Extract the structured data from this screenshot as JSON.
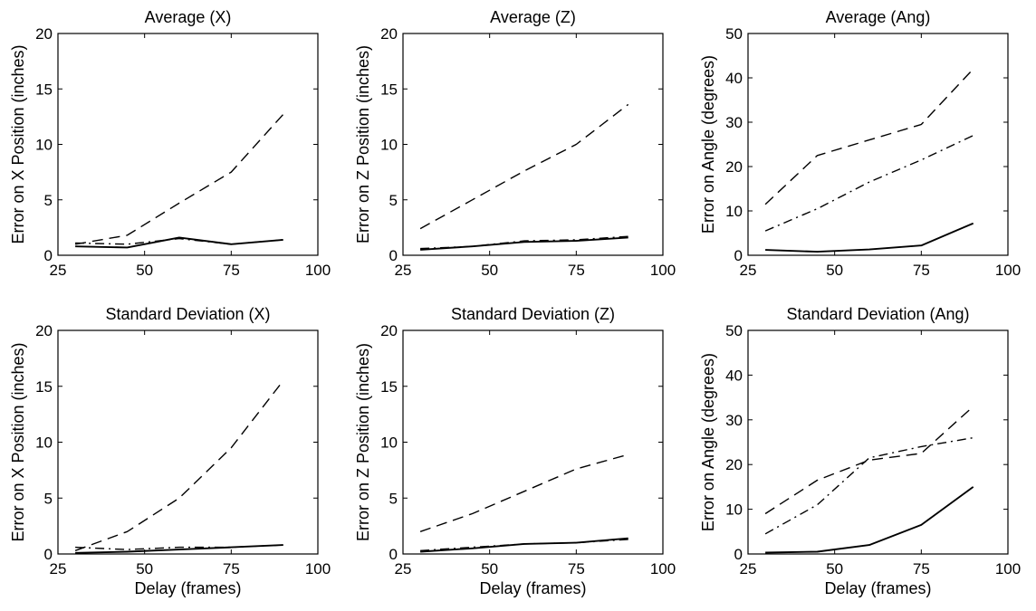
{
  "chart_data": [
    {
      "type": "line",
      "title": "Average (X)",
      "xlabel": "",
      "ylabel": "Error on X Position (inches)",
      "xlim": [
        25,
        100
      ],
      "ylim": [
        0,
        20
      ],
      "xticks": [
        25,
        50,
        75,
        100
      ],
      "yticks": [
        0,
        5,
        10,
        15,
        20
      ],
      "grid": false,
      "x": [
        30,
        45,
        60,
        75,
        90
      ],
      "series": [
        {
          "style": "dashed",
          "values": [
            1.0,
            1.8,
            4.7,
            7.5,
            12.7
          ]
        },
        {
          "style": "dashdot",
          "values": [
            1.1,
            1.0,
            1.5,
            1.0,
            1.4
          ]
        },
        {
          "style": "solid",
          "values": [
            0.8,
            0.7,
            1.6,
            1.0,
            1.4
          ]
        }
      ]
    },
    {
      "type": "line",
      "title": "Average (Z)",
      "xlabel": "",
      "ylabel": "Error on Z Position (inches)",
      "xlim": [
        25,
        100
      ],
      "ylim": [
        0,
        20
      ],
      "xticks": [
        25,
        50,
        75,
        100
      ],
      "yticks": [
        0,
        5,
        10,
        15,
        20
      ],
      "grid": false,
      "x": [
        30,
        45,
        60,
        75,
        90
      ],
      "series": [
        {
          "style": "dashed",
          "values": [
            2.4,
            5.0,
            7.6,
            10.0,
            13.6
          ]
        },
        {
          "style": "dashdot",
          "values": [
            0.6,
            0.8,
            1.3,
            1.4,
            1.7
          ]
        },
        {
          "style": "solid",
          "values": [
            0.5,
            0.8,
            1.2,
            1.3,
            1.6
          ]
        }
      ]
    },
    {
      "type": "line",
      "title": "Average (Ang)",
      "xlabel": "",
      "ylabel": "Error on Angle (degrees)",
      "xlim": [
        25,
        100
      ],
      "ylim": [
        0,
        50
      ],
      "xticks": [
        25,
        50,
        75,
        100
      ],
      "yticks": [
        0,
        10,
        20,
        30,
        40,
        50
      ],
      "grid": false,
      "x": [
        30,
        45,
        60,
        75,
        90
      ],
      "series": [
        {
          "style": "dashed",
          "values": [
            11.5,
            22.5,
            26.0,
            29.5,
            42.0
          ]
        },
        {
          "style": "dashdot",
          "values": [
            5.5,
            10.5,
            16.5,
            21.5,
            27.0
          ]
        },
        {
          "style": "solid",
          "values": [
            1.2,
            0.8,
            1.3,
            2.2,
            7.2
          ]
        }
      ]
    },
    {
      "type": "line",
      "title": "Standard Deviation (X)",
      "xlabel": "Delay (frames)",
      "ylabel": "Error on X Position (inches)",
      "xlim": [
        25,
        100
      ],
      "ylim": [
        0,
        20
      ],
      "xticks": [
        25,
        50,
        75,
        100
      ],
      "yticks": [
        0,
        5,
        10,
        15,
        20
      ],
      "grid": false,
      "x": [
        30,
        45,
        60,
        75,
        90
      ],
      "series": [
        {
          "style": "dashed",
          "values": [
            0.3,
            2.0,
            5.0,
            9.5,
            15.5
          ]
        },
        {
          "style": "dashdot",
          "values": [
            0.6,
            0.4,
            0.6,
            0.6,
            0.8
          ]
        },
        {
          "style": "solid",
          "values": [
            0.1,
            0.2,
            0.4,
            0.6,
            0.8
          ]
        }
      ]
    },
    {
      "type": "line",
      "title": "Standard Deviation (Z)",
      "xlabel": "Delay (frames)",
      "ylabel": "Error on Z Position (inches)",
      "xlim": [
        25,
        100
      ],
      "ylim": [
        0,
        20
      ],
      "xticks": [
        25,
        50,
        75,
        100
      ],
      "yticks": [
        0,
        5,
        10,
        15,
        20
      ],
      "grid": false,
      "x": [
        30,
        45,
        60,
        75,
        90
      ],
      "series": [
        {
          "style": "dashed",
          "values": [
            2.0,
            3.6,
            5.6,
            7.6,
            8.9
          ]
        },
        {
          "style": "dashdot",
          "values": [
            0.3,
            0.6,
            0.9,
            1.0,
            1.3
          ]
        },
        {
          "style": "solid",
          "values": [
            0.2,
            0.5,
            0.9,
            1.0,
            1.4
          ]
        }
      ]
    },
    {
      "type": "line",
      "title": "Standard Deviation (Ang)",
      "xlabel": "Delay (frames)",
      "ylabel": "Error on Angle (degrees)",
      "xlim": [
        25,
        100
      ],
      "ylim": [
        0,
        50
      ],
      "xticks": [
        25,
        50,
        75,
        100
      ],
      "yticks": [
        0,
        10,
        20,
        30,
        40,
        50
      ],
      "grid": false,
      "x": [
        30,
        45,
        60,
        75,
        90
      ],
      "series": [
        {
          "style": "dashed",
          "values": [
            9.0,
            16.5,
            21.0,
            22.5,
            33.0
          ]
        },
        {
          "style": "dashdot",
          "values": [
            4.5,
            11.0,
            21.5,
            24.0,
            26.0
          ]
        },
        {
          "style": "solid",
          "values": [
            0.3,
            0.5,
            2.0,
            6.5,
            15.0
          ]
        }
      ]
    }
  ]
}
